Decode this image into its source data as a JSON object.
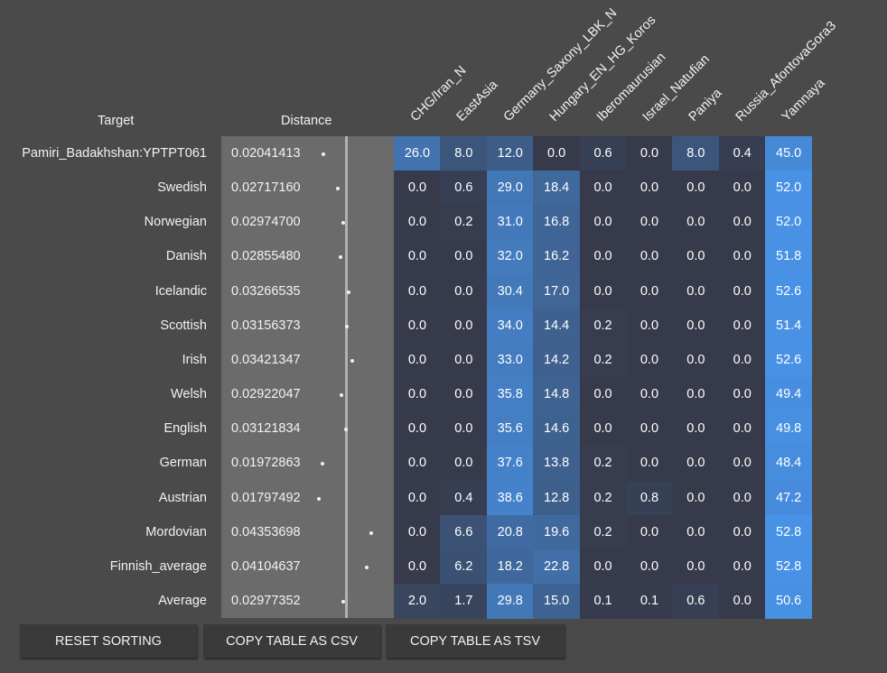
{
  "headers": {
    "target": "Target",
    "distance": "Distance"
  },
  "columns": [
    "CHG/Iran_N",
    "EastAsia",
    "Germany_Saxony_LBK_N",
    "Hungary_EN_HG_Koros",
    "Iberomaurusian",
    "Israel_Natufian",
    "Paniya",
    "Russia_AfontovaGora3",
    "Yamnaya"
  ],
  "rows": [
    {
      "target": "Pamiri_Badakhshan:YPTPT061",
      "distance": "0.02041413",
      "values": [
        "26.0",
        "8.0",
        "12.0",
        "0.0",
        "0.6",
        "0.0",
        "8.0",
        "0.4",
        "45.0"
      ]
    },
    {
      "target": "Swedish",
      "distance": "0.02717160",
      "values": [
        "0.0",
        "0.6",
        "29.0",
        "18.4",
        "0.0",
        "0.0",
        "0.0",
        "0.0",
        "52.0"
      ]
    },
    {
      "target": "Norwegian",
      "distance": "0.02974700",
      "values": [
        "0.0",
        "0.2",
        "31.0",
        "16.8",
        "0.0",
        "0.0",
        "0.0",
        "0.0",
        "52.0"
      ]
    },
    {
      "target": "Danish",
      "distance": "0.02855480",
      "values": [
        "0.0",
        "0.0",
        "32.0",
        "16.2",
        "0.0",
        "0.0",
        "0.0",
        "0.0",
        "51.8"
      ]
    },
    {
      "target": "Icelandic",
      "distance": "0.03266535",
      "values": [
        "0.0",
        "0.0",
        "30.4",
        "17.0",
        "0.0",
        "0.0",
        "0.0",
        "0.0",
        "52.6"
      ]
    },
    {
      "target": "Scottish",
      "distance": "0.03156373",
      "values": [
        "0.0",
        "0.0",
        "34.0",
        "14.4",
        "0.2",
        "0.0",
        "0.0",
        "0.0",
        "51.4"
      ]
    },
    {
      "target": "Irish",
      "distance": "0.03421347",
      "values": [
        "0.0",
        "0.0",
        "33.0",
        "14.2",
        "0.2",
        "0.0",
        "0.0",
        "0.0",
        "52.6"
      ]
    },
    {
      "target": "Welsh",
      "distance": "0.02922047",
      "values": [
        "0.0",
        "0.0",
        "35.8",
        "14.8",
        "0.0",
        "0.0",
        "0.0",
        "0.0",
        "49.4"
      ]
    },
    {
      "target": "English",
      "distance": "0.03121834",
      "values": [
        "0.0",
        "0.0",
        "35.6",
        "14.6",
        "0.0",
        "0.0",
        "0.0",
        "0.0",
        "49.8"
      ]
    },
    {
      "target": "German",
      "distance": "0.01972863",
      "values": [
        "0.0",
        "0.0",
        "37.6",
        "13.8",
        "0.2",
        "0.0",
        "0.0",
        "0.0",
        "48.4"
      ]
    },
    {
      "target": "Austrian",
      "distance": "0.01797492",
      "values": [
        "0.0",
        "0.4",
        "38.6",
        "12.8",
        "0.2",
        "0.8",
        "0.0",
        "0.0",
        "47.2"
      ]
    },
    {
      "target": "Mordovian",
      "distance": "0.04353698",
      "values": [
        "0.0",
        "6.6",
        "20.8",
        "19.6",
        "0.2",
        "0.0",
        "0.0",
        "0.0",
        "52.8"
      ]
    },
    {
      "target": "Finnish_average",
      "distance": "0.04104637",
      "values": [
        "0.0",
        "6.2",
        "18.2",
        "22.8",
        "0.0",
        "0.0",
        "0.0",
        "0.0",
        "52.8"
      ]
    },
    {
      "target": "Average",
      "distance": "0.02977352",
      "values": [
        "2.0",
        "1.7",
        "29.8",
        "15.0",
        "0.1",
        "0.1",
        "0.6",
        "0.0",
        "50.6"
      ]
    }
  ],
  "buttons": {
    "reset": "RESET SORTING",
    "csv": "COPY TABLE AS CSV",
    "tsv": "COPY TABLE AS TSV"
  },
  "colors": {
    "background": "#4a4a4a",
    "panel": "#6b6b6b",
    "cell_low": "#363a4a",
    "cell_high": "#4892e6"
  }
}
